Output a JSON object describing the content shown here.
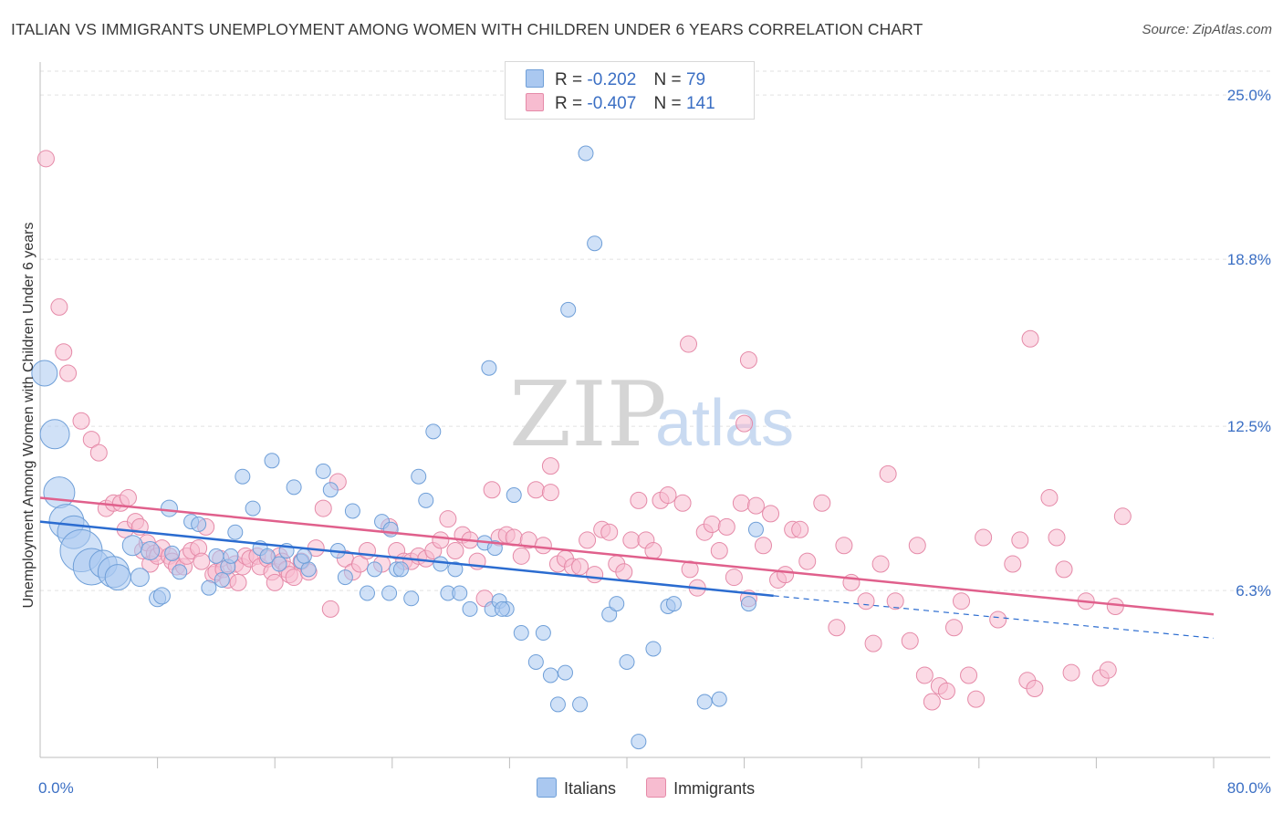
{
  "header": {
    "title": "ITALIAN VS IMMIGRANTS UNEMPLOYMENT AMONG WOMEN WITH CHILDREN UNDER 6 YEARS CORRELATION CHART",
    "source": "Source: ZipAtlas.com"
  },
  "watermark": {
    "zip": "ZIP",
    "atlas": "atlas"
  },
  "legend": {
    "r_label": "R =",
    "n_label": "N =",
    "italians": {
      "r": "-0.202",
      "n": "79"
    },
    "immigrants": {
      "r": "-0.407",
      "n": "141"
    }
  },
  "colors": {
    "italians_fill": "#aac8f0",
    "italians_stroke": "#6f9fd8",
    "italians_line": "#2b6cd0",
    "immigrants_fill": "#f7bcd0",
    "immigrants_stroke": "#e58aa8",
    "immigrants_line": "#e0608c",
    "axis_label": "#3b6fc4"
  },
  "chart_data": {
    "type": "scatter",
    "xlabel": "",
    "ylabel": "Unemployment Among Women with Children Under 6 years",
    "xlim": [
      0,
      80
    ],
    "ylim": [
      0,
      25.9
    ],
    "x_ticks": [
      "0.0%",
      "80.0%"
    ],
    "y_ticks": [
      {
        "value": 6.3,
        "label": "6.3%"
      },
      {
        "value": 12.5,
        "label": "12.5%"
      },
      {
        "value": 18.8,
        "label": "18.8%"
      },
      {
        "value": 25.0,
        "label": "25.0%"
      }
    ],
    "grid": "horizontal dashed",
    "legend_position": "top-center",
    "bottom_legend": [
      "Italians",
      "Immigrants"
    ],
    "series": [
      {
        "name": "Italians",
        "trend": {
          "x": [
            0,
            50
          ],
          "y": [
            8.9,
            6.1
          ],
          "dashed_to": [
            80,
            4.5
          ]
        },
        "points": [
          [
            0.3,
            14.5,
            14
          ],
          [
            1.0,
            12.2,
            16
          ],
          [
            1.3,
            10.0,
            17
          ],
          [
            1.8,
            8.9,
            19
          ],
          [
            2.3,
            8.5,
            18
          ],
          [
            2.8,
            7.8,
            23
          ],
          [
            3.5,
            7.2,
            20
          ],
          [
            4.3,
            7.3,
            15
          ],
          [
            5.0,
            7.0,
            17
          ],
          [
            5.3,
            6.8,
            14
          ],
          [
            6.3,
            8.0,
            11
          ],
          [
            6.8,
            6.8,
            10
          ],
          [
            7.5,
            7.8,
            10
          ],
          [
            8.0,
            6.0,
            9
          ],
          [
            8.3,
            6.1,
            9
          ],
          [
            8.8,
            9.4,
            9
          ],
          [
            9.0,
            7.7,
            8
          ],
          [
            9.5,
            7.0,
            8
          ],
          [
            10.3,
            8.9,
            8
          ],
          [
            10.8,
            8.8,
            8
          ],
          [
            11.5,
            6.4,
            8
          ],
          [
            12.0,
            7.6,
            8
          ],
          [
            12.4,
            6.7,
            8
          ],
          [
            12.8,
            7.2,
            8
          ],
          [
            13.0,
            7.6,
            8
          ],
          [
            13.3,
            8.5,
            8
          ],
          [
            13.8,
            10.6,
            8
          ],
          [
            14.5,
            9.4,
            8
          ],
          [
            15.0,
            7.9,
            8
          ],
          [
            15.5,
            7.6,
            8
          ],
          [
            15.8,
            11.2,
            8
          ],
          [
            16.3,
            7.3,
            8
          ],
          [
            16.8,
            7.8,
            8
          ],
          [
            17.3,
            10.2,
            8
          ],
          [
            17.8,
            7.4,
            8
          ],
          [
            18.3,
            7.1,
            8
          ],
          [
            18.0,
            7.6,
            8
          ],
          [
            19.3,
            10.8,
            8
          ],
          [
            19.8,
            10.1,
            8
          ],
          [
            20.3,
            7.8,
            8
          ],
          [
            20.8,
            6.8,
            8
          ],
          [
            21.3,
            9.3,
            8
          ],
          [
            22.3,
            6.2,
            8
          ],
          [
            22.8,
            7.1,
            8
          ],
          [
            23.3,
            8.9,
            8
          ],
          [
            23.8,
            6.2,
            8
          ],
          [
            24.3,
            7.1,
            8
          ],
          [
            24.6,
            7.1,
            8
          ],
          [
            23.9,
            8.6,
            8
          ],
          [
            25.3,
            6.0,
            8
          ],
          [
            25.8,
            10.6,
            8
          ],
          [
            26.3,
            9.7,
            8
          ],
          [
            26.8,
            12.3,
            8
          ],
          [
            27.3,
            7.3,
            8
          ],
          [
            27.8,
            6.2,
            8
          ],
          [
            28.3,
            7.1,
            8
          ],
          [
            28.6,
            6.2,
            8
          ],
          [
            29.3,
            5.6,
            8
          ],
          [
            30.3,
            8.1,
            8
          ],
          [
            30.6,
            14.7,
            8
          ],
          [
            30.8,
            5.6,
            8
          ],
          [
            31.3,
            5.9,
            8
          ],
          [
            31.8,
            5.6,
            8
          ],
          [
            32.3,
            9.9,
            8
          ],
          [
            32.8,
            4.7,
            8
          ],
          [
            31.0,
            7.9,
            8
          ],
          [
            31.5,
            5.6,
            8
          ],
          [
            33.8,
            3.6,
            8
          ],
          [
            34.3,
            4.7,
            8
          ],
          [
            35.8,
            3.2,
            8
          ],
          [
            35.3,
            2.0,
            8
          ],
          [
            36.8,
            2.0,
            8
          ],
          [
            34.8,
            3.1,
            8
          ],
          [
            36.0,
            16.9,
            8
          ],
          [
            37.2,
            22.8,
            8
          ],
          [
            37.8,
            19.4,
            8
          ],
          [
            38.8,
            5.4,
            8
          ],
          [
            39.3,
            5.8,
            8
          ],
          [
            40.0,
            3.6,
            8
          ],
          [
            40.8,
            0.6,
            8
          ],
          [
            41.8,
            4.1,
            8
          ],
          [
            42.8,
            5.7,
            8
          ],
          [
            43.2,
            5.8,
            8
          ],
          [
            45.3,
            2.1,
            8
          ],
          [
            46.3,
            2.2,
            8
          ],
          [
            48.3,
            5.8,
            8
          ],
          [
            48.8,
            8.6,
            8
          ]
        ]
      },
      {
        "name": "Immigrants",
        "trend": {
          "x": [
            0,
            80
          ],
          "y": [
            9.8,
            5.4
          ]
        },
        "points": [
          [
            0.4,
            22.6,
            9
          ],
          [
            1.3,
            17.0,
            9
          ],
          [
            1.6,
            15.3,
            9
          ],
          [
            1.9,
            14.5,
            9
          ],
          [
            2.8,
            12.7,
            9
          ],
          [
            3.5,
            12.0,
            9
          ],
          [
            4.0,
            11.5,
            9
          ],
          [
            4.5,
            9.4,
            9
          ],
          [
            5.0,
            9.6,
            9
          ],
          [
            5.5,
            9.6,
            9
          ],
          [
            5.8,
            8.6,
            9
          ],
          [
            6.0,
            9.8,
            9
          ],
          [
            6.5,
            8.9,
            9
          ],
          [
            6.8,
            8.7,
            9
          ],
          [
            7.0,
            7.8,
            9
          ],
          [
            7.3,
            8.1,
            9
          ],
          [
            7.5,
            7.3,
            9
          ],
          [
            7.8,
            7.7,
            9
          ],
          [
            8.0,
            7.6,
            9
          ],
          [
            8.3,
            7.9,
            9
          ],
          [
            8.8,
            7.6,
            9
          ],
          [
            9.0,
            7.4,
            9
          ],
          [
            9.3,
            7.2,
            9
          ],
          [
            9.8,
            7.2,
            9
          ],
          [
            10.0,
            7.6,
            9
          ],
          [
            10.3,
            7.8,
            9
          ],
          [
            10.8,
            7.9,
            9
          ],
          [
            11.0,
            7.4,
            9
          ],
          [
            11.3,
            8.7,
            9
          ],
          [
            11.8,
            6.9,
            9
          ],
          [
            12.0,
            7.0,
            9
          ],
          [
            12.3,
            7.5,
            9
          ],
          [
            12.5,
            7.1,
            9
          ],
          [
            12.8,
            6.7,
            9
          ],
          [
            13.3,
            7.3,
            9
          ],
          [
            13.5,
            6.6,
            9
          ],
          [
            13.8,
            7.2,
            9
          ],
          [
            14.0,
            7.6,
            9
          ],
          [
            14.3,
            7.5,
            9
          ],
          [
            14.8,
            7.6,
            9
          ],
          [
            15.0,
            7.2,
            9
          ],
          [
            15.5,
            7.5,
            9
          ],
          [
            15.8,
            7.0,
            9
          ],
          [
            16.0,
            6.6,
            9
          ],
          [
            16.3,
            7.6,
            9
          ],
          [
            16.5,
            7.4,
            9
          ],
          [
            16.8,
            7.1,
            9
          ],
          [
            17.0,
            6.9,
            9
          ],
          [
            17.3,
            6.8,
            9
          ],
          [
            17.8,
            7.4,
            9
          ],
          [
            18.3,
            7.0,
            9
          ],
          [
            18.8,
            7.9,
            9
          ],
          [
            19.3,
            9.4,
            9
          ],
          [
            19.8,
            5.6,
            9
          ],
          [
            20.3,
            10.4,
            9
          ],
          [
            20.8,
            7.5,
            9
          ],
          [
            21.3,
            7.0,
            9
          ],
          [
            21.8,
            7.3,
            9
          ],
          [
            22.3,
            7.8,
            9
          ],
          [
            23.3,
            7.3,
            9
          ],
          [
            23.8,
            8.7,
            9
          ],
          [
            24.3,
            7.8,
            9
          ],
          [
            24.8,
            7.4,
            9
          ],
          [
            25.3,
            7.4,
            9
          ],
          [
            25.8,
            7.6,
            9
          ],
          [
            26.3,
            7.5,
            9
          ],
          [
            26.8,
            7.8,
            9
          ],
          [
            27.3,
            8.2,
            9
          ],
          [
            27.8,
            9.0,
            9
          ],
          [
            28.3,
            7.8,
            9
          ],
          [
            28.8,
            8.4,
            9
          ],
          [
            29.3,
            8.2,
            9
          ],
          [
            29.8,
            7.4,
            9
          ],
          [
            30.3,
            6.0,
            9
          ],
          [
            30.8,
            10.1,
            9
          ],
          [
            31.3,
            8.3,
            9
          ],
          [
            31.8,
            8.4,
            9
          ],
          [
            32.3,
            8.3,
            9
          ],
          [
            32.8,
            7.6,
            9
          ],
          [
            33.3,
            8.2,
            9
          ],
          [
            33.8,
            10.1,
            9
          ],
          [
            34.3,
            8.0,
            9
          ],
          [
            34.8,
            10.0,
            9
          ],
          [
            35.3,
            7.3,
            9
          ],
          [
            35.8,
            7.5,
            9
          ],
          [
            36.3,
            7.2,
            9
          ],
          [
            36.8,
            7.2,
            9
          ],
          [
            37.3,
            8.2,
            9
          ],
          [
            37.8,
            6.9,
            9
          ],
          [
            38.3,
            8.6,
            9
          ],
          [
            38.8,
            8.5,
            9
          ],
          [
            39.3,
            7.3,
            9
          ],
          [
            39.8,
            7.0,
            9
          ],
          [
            40.3,
            8.2,
            9
          ],
          [
            40.8,
            9.7,
            9
          ],
          [
            41.3,
            8.2,
            9
          ],
          [
            41.8,
            7.8,
            9
          ],
          [
            42.3,
            9.7,
            9
          ],
          [
            42.8,
            9.9,
            9
          ],
          [
            43.8,
            9.6,
            9
          ],
          [
            44.3,
            7.1,
            9
          ],
          [
            44.8,
            6.4,
            9
          ],
          [
            45.3,
            8.5,
            9
          ],
          [
            45.8,
            8.8,
            9
          ],
          [
            46.3,
            7.8,
            9
          ],
          [
            46.8,
            8.7,
            9
          ],
          [
            47.3,
            6.8,
            9
          ],
          [
            47.8,
            9.6,
            9
          ],
          [
            48.3,
            6.0,
            9
          ],
          [
            48.8,
            9.5,
            9
          ],
          [
            49.3,
            8.0,
            9
          ],
          [
            49.8,
            9.2,
            9
          ],
          [
            50.3,
            6.7,
            9
          ],
          [
            50.8,
            6.9,
            9
          ],
          [
            51.3,
            8.6,
            9
          ],
          [
            51.8,
            8.6,
            9
          ],
          [
            52.3,
            7.4,
            9
          ],
          [
            53.3,
            9.6,
            9
          ],
          [
            54.3,
            4.9,
            9
          ],
          [
            54.8,
            8.0,
            9
          ],
          [
            55.3,
            6.6,
            9
          ],
          [
            56.3,
            5.9,
            9
          ],
          [
            56.8,
            4.3,
            9
          ],
          [
            57.3,
            7.3,
            9
          ],
          [
            57.8,
            10.7,
            9
          ],
          [
            58.3,
            5.9,
            9
          ],
          [
            59.3,
            4.4,
            9
          ],
          [
            59.8,
            8.0,
            9
          ],
          [
            60.3,
            3.1,
            9
          ],
          [
            60.8,
            2.1,
            9
          ],
          [
            61.3,
            2.7,
            9
          ],
          [
            61.8,
            2.5,
            9
          ],
          [
            62.3,
            4.9,
            9
          ],
          [
            62.8,
            5.9,
            9
          ],
          [
            63.3,
            3.1,
            9
          ],
          [
            63.8,
            2.2,
            9
          ],
          [
            64.3,
            8.3,
            9
          ],
          [
            65.3,
            5.2,
            9
          ],
          [
            66.3,
            7.3,
            9
          ],
          [
            66.8,
            8.2,
            9
          ],
          [
            67.3,
            2.9,
            9
          ],
          [
            67.8,
            2.6,
            9
          ],
          [
            68.8,
            9.8,
            9
          ],
          [
            69.3,
            8.3,
            9
          ],
          [
            69.8,
            7.1,
            9
          ],
          [
            70.3,
            3.2,
            9
          ],
          [
            71.3,
            5.9,
            9
          ],
          [
            72.3,
            3.0,
            9
          ],
          [
            72.8,
            3.3,
            9
          ],
          [
            73.3,
            5.7,
            9
          ],
          [
            73.8,
            9.1,
            9
          ],
          [
            67.5,
            15.8,
            9
          ],
          [
            44.2,
            15.6,
            9
          ],
          [
            48.3,
            15.0,
            9
          ],
          [
            48.0,
            12.6,
            9
          ],
          [
            34.8,
            11.0,
            9
          ]
        ]
      }
    ]
  }
}
